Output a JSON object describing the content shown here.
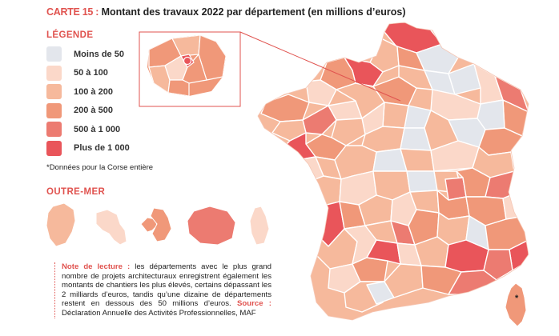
{
  "header": {
    "kicker": "CARTE 15 :",
    "title": "Montant des travaux 2022 par département (en millions d’euros)"
  },
  "legend": {
    "title": "LÉGENDE",
    "items": [
      {
        "label": "Moins de 50",
        "color": "#e3e6ec"
      },
      {
        "label": "50 à 100",
        "color": "#fbd8c9"
      },
      {
        "label": "100 à 200",
        "color": "#f6b99c"
      },
      {
        "label": "200 à 500",
        "color": "#f09879"
      },
      {
        "label": "500 à 1 000",
        "color": "#ec7b71"
      },
      {
        "label": "Plus de 1 000",
        "color": "#e9555a"
      }
    ]
  },
  "footnote": "*Données pour la Corse entière",
  "outremer": {
    "title": "OUTRE-MER"
  },
  "note": {
    "label": "Note de lecture :",
    "text": " les départements avec le plus grand nombre de projets architecturaux enregistrent également les montants de chantiers les plus élevés, certains dépassant les 2 milliards d’euros, tandis qu’une dizaine de départements restent en dessous des 50 millions d’euros.",
    "source_label": "Source :",
    "source_text": " Déclaration Annuelle des Activités Professionnelles, MAF"
  },
  "corsica_marker": "*",
  "colors": {
    "accent": "#e0534f",
    "inset_border": "#e0534f",
    "department_border": "#ffffff"
  }
}
